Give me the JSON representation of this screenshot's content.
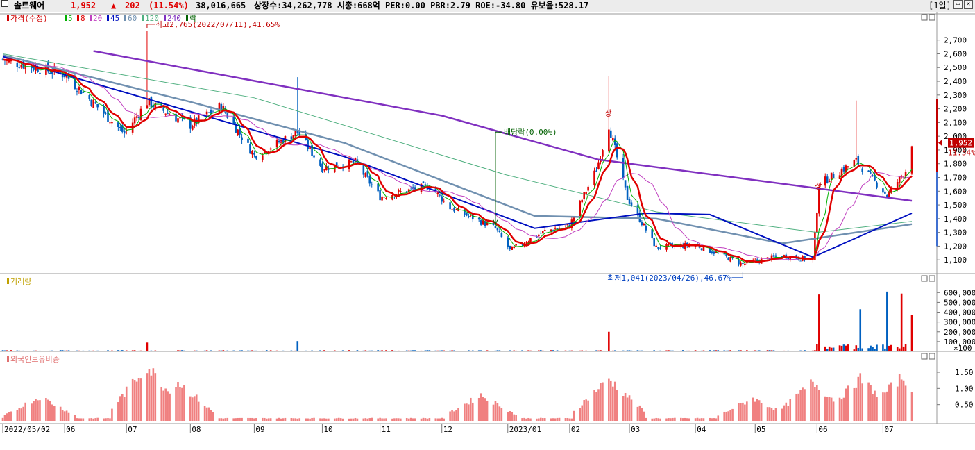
{
  "header": {
    "name": "솔트웨어",
    "price": "1,952",
    "change_arrow": "▲",
    "change": "202",
    "change_pct": "(11.54%)",
    "volume": "38,016,665",
    "stats": "상장수:34,262,778 시총:668억 PER:0.00 PBR:2.79 ROE:-34.80 유보율:528.17",
    "period_button": "[1일]",
    "restore_icon": "restore-icon",
    "close_icon": "close-icon",
    "colors": {
      "up": "#e00000",
      "down": "#0060c0"
    }
  },
  "chart_data": [
    {
      "type": "candlestick",
      "panel": "price",
      "legend": [
        {
          "label": "가격(수정)",
          "color": "#d00000"
        },
        {
          "label": "5",
          "color": "#00b000"
        },
        {
          "label": "8",
          "color": "#e00000"
        },
        {
          "label": "20",
          "color": "#c040c0"
        },
        {
          "label": "45",
          "color": "#0010c0"
        },
        {
          "label": "60",
          "color": "#7090b0"
        },
        {
          "label": "120",
          "color": "#50b080"
        },
        {
          "label": "240",
          "color": "#8030c0"
        },
        {
          "label": "락",
          "color": "#006000"
        }
      ],
      "ylim": [
        1000,
        2850
      ],
      "yticks": [
        1100,
        1200,
        1300,
        1400,
        1500,
        1600,
        1700,
        1800,
        1900,
        2000,
        2100,
        2200,
        2300,
        2400,
        2500,
        2600,
        2700
      ],
      "ytick_labels": [
        "1,100",
        "1,200",
        "1,300",
        "1,400",
        "1,500",
        "1,600",
        "1,700",
        "1,800",
        "1,900",
        "2,000",
        "2,100",
        "2,200",
        "2,300",
        "2,400",
        "2,500",
        "2,600",
        "2,700"
      ],
      "x_start": "2022/05/02",
      "x_end": "2023/07/17",
      "annotations": {
        "high": "최고2,765(2022/07/11),41.65%",
        "low": "최저1,041(2023/04/26),46.67%",
        "dividend": "배당락(0.00%)",
        "up_mark": "상"
      },
      "last_price_label": "1,952",
      "last_pct_label": "11.54%",
      "key_points": [
        {
          "date": "2022/05/02",
          "close": 2560
        },
        {
          "date": "2022/06/01",
          "close": 2450
        },
        {
          "date": "2022/06/30",
          "close": 2020
        },
        {
          "date": "2022/07/11",
          "high": 2765,
          "close": 2250
        },
        {
          "date": "2022/08/01",
          "close": 2080
        },
        {
          "date": "2022/08/16",
          "close": 2220
        },
        {
          "date": "2022/09/01",
          "close": 1860
        },
        {
          "date": "2022/09/22",
          "high": 2430,
          "close": 2030
        },
        {
          "date": "2022/10/04",
          "close": 1770
        },
        {
          "date": "2022/10/20",
          "close": 1810
        },
        {
          "date": "2022/11/01",
          "close": 1560
        },
        {
          "date": "2022/11/25",
          "close": 1640
        },
        {
          "date": "2022/12/05",
          "close": 1480
        },
        {
          "date": "2022/12/27",
          "close": 1330
        },
        {
          "date": "2023/01/03",
          "close": 1170
        },
        {
          "date": "2023/01/20",
          "close": 1310
        },
        {
          "date": "2023/02/01",
          "close": 1350
        },
        {
          "date": "2023/02/14",
          "close": 1760
        },
        {
          "date": "2023/02/20",
          "high": 2440,
          "close": 2080
        },
        {
          "date": "2023/03/01",
          "close": 1550
        },
        {
          "date": "2023/03/15",
          "close": 1190
        },
        {
          "date": "2023/04/03",
          "close": 1210
        },
        {
          "date": "2023/04/26",
          "low": 1041,
          "close": 1070
        },
        {
          "date": "2023/05/15",
          "close": 1130
        },
        {
          "date": "2023/05/30",
          "close": 1100
        },
        {
          "date": "2023/06/02",
          "close": 1650
        },
        {
          "date": "2023/06/20",
          "high": 2260,
          "close": 1820
        },
        {
          "date": "2023/07/05",
          "close": 1570
        },
        {
          "date": "2023/07/14",
          "close": 1750
        },
        {
          "date": "2023/07/17",
          "close": 1952
        }
      ],
      "moving_averages": {
        "240": [
          {
            "date": "2022/06/15",
            "value": 2620
          },
          {
            "date": "2022/12/01",
            "value": 2150
          },
          {
            "date": "2023/02/15",
            "value": 1830
          },
          {
            "date": "2023/07/17",
            "value": 1530
          }
        ],
        "120": [
          {
            "date": "2022/05/02",
            "value": 2600
          },
          {
            "date": "2022/09/01",
            "value": 2280
          },
          {
            "date": "2023/01/01",
            "value": 1720
          },
          {
            "date": "2023/03/15",
            "value": 1450
          },
          {
            "date": "2023/06/01",
            "value": 1300
          },
          {
            "date": "2023/07/17",
            "value": 1380
          }
        ],
        "60": [
          {
            "date": "2022/05/02",
            "value": 2590
          },
          {
            "date": "2022/08/01",
            "value": 2250
          },
          {
            "date": "2022/10/15",
            "value": 1950
          },
          {
            "date": "2023/01/15",
            "value": 1420
          },
          {
            "date": "2023/03/15",
            "value": 1400
          },
          {
            "date": "2023/05/15",
            "value": 1220
          },
          {
            "date": "2023/07/17",
            "value": 1360
          }
        ],
        "45": [
          {
            "date": "2022/05/02",
            "value": 2580
          },
          {
            "date": "2022/08/01",
            "value": 2180
          },
          {
            "date": "2022/10/15",
            "value": 1850
          },
          {
            "date": "2023/01/15",
            "value": 1330
          },
          {
            "date": "2023/03/10",
            "value": 1440
          },
          {
            "date": "2023/04/10",
            "value": 1430
          },
          {
            "date": "2023/05/30",
            "value": 1120
          },
          {
            "date": "2023/07/17",
            "value": 1440
          }
        ]
      }
    },
    {
      "type": "bar",
      "panel": "volume",
      "legend": [
        {
          "label": "거래량",
          "color": "#c0a000"
        }
      ],
      "ylim": [
        0,
        680000
      ],
      "yticks": [
        100000,
        200000,
        300000,
        400000,
        500000,
        600000
      ],
      "ytick_labels": [
        "100,000",
        "200,000",
        "300,000",
        "400,000",
        "500,000",
        "600,000"
      ],
      "unit_label": "×100",
      "peaks": [
        {
          "date": "2022/07/11",
          "value": 90000
        },
        {
          "date": "2022/09/22",
          "value": 105000
        },
        {
          "date": "2023/02/20",
          "value": 200000
        },
        {
          "date": "2023/06/02",
          "value": 580000
        },
        {
          "date": "2023/06/22",
          "value": 430000
        },
        {
          "date": "2023/07/05",
          "value": 610000
        },
        {
          "date": "2023/07/12",
          "value": 590000
        },
        {
          "date": "2023/07/17",
          "value": 370000
        }
      ]
    },
    {
      "type": "bar",
      "panel": "foreign_ownership",
      "legend": [
        {
          "label": "외국인보유비중",
          "color": "#e07070"
        }
      ],
      "ylim": [
        0,
        1.8
      ],
      "yticks": [
        0.5,
        1.0,
        1.5
      ],
      "ytick_labels": [
        "0.50",
        "1.00",
        "1.50"
      ],
      "peaks": [
        {
          "date": "2022/05/20",
          "value": 0.75
        },
        {
          "date": "2022/07/11",
          "value": 1.7
        },
        {
          "date": "2022/07/26",
          "value": 1.2
        },
        {
          "date": "2022/12/20",
          "value": 0.8
        },
        {
          "date": "2023/02/20",
          "value": 1.3
        },
        {
          "date": "2023/05/01",
          "value": 0.7
        },
        {
          "date": "2023/05/30",
          "value": 1.2
        },
        {
          "date": "2023/06/22",
          "value": 1.3
        },
        {
          "date": "2023/07/12",
          "value": 1.35
        }
      ]
    }
  ],
  "x_axis": {
    "labels": [
      "2022/05/02",
      "06",
      "07",
      "08",
      "09",
      "10",
      "11",
      "12",
      "2023/01",
      "02",
      "03",
      "04",
      "05",
      "06",
      "07"
    ],
    "dates": [
      "2022/05/02",
      "2022/06/01",
      "2022/07/01",
      "2022/08/01",
      "2022/09/01",
      "2022/10/04",
      "2022/11/01",
      "2022/12/01",
      "2023/01/02",
      "2023/02/01",
      "2023/03/02",
      "2023/04/03",
      "2023/05/02",
      "2023/06/01",
      "2023/07/03"
    ]
  }
}
